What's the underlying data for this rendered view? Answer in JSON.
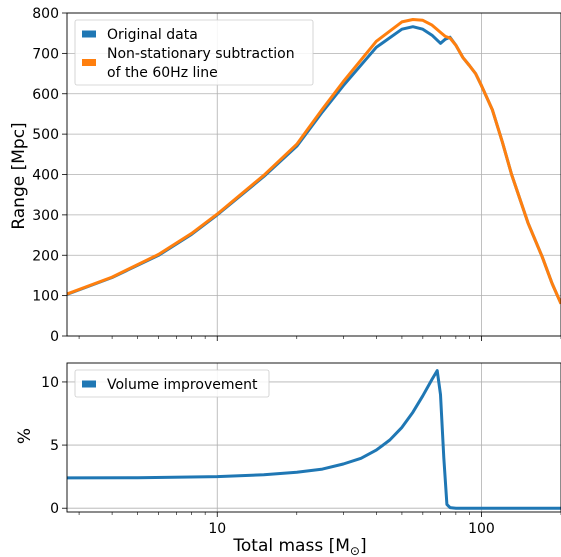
{
  "chart_data": [
    {
      "type": "line",
      "ylabel": "Range [Mpc]",
      "xscale": "log",
      "xlim": [
        2.7,
        200
      ],
      "ylim": [
        0,
        800
      ],
      "yticks": [
        0,
        100,
        200,
        300,
        400,
        500,
        600,
        700,
        800
      ],
      "grid": true,
      "legend_position": "top-left",
      "series": [
        {
          "name": "Original data",
          "color": "#1f77b4",
          "x": [
            2.7,
            4,
            6,
            8,
            10,
            15,
            20,
            25,
            30,
            40,
            50,
            55,
            60,
            65,
            70,
            73,
            76,
            80,
            85,
            90,
            95,
            100,
            110,
            120,
            130,
            150,
            170,
            185,
            200
          ],
          "y": [
            103,
            145,
            200,
            252,
            300,
            395,
            470,
            555,
            620,
            715,
            760,
            766,
            760,
            745,
            725,
            735,
            740,
            720,
            690,
            670,
            650,
            620,
            560,
            480,
            400,
            280,
            195,
            130,
            80
          ]
        },
        {
          "name": "Non-stationary subtraction of the 60Hz line",
          "color": "#ff7f0e",
          "x": [
            2.7,
            4,
            6,
            8,
            10,
            15,
            20,
            25,
            30,
            40,
            50,
            55,
            60,
            65,
            70,
            73,
            76,
            80,
            85,
            90,
            95,
            100,
            110,
            120,
            130,
            150,
            170,
            185,
            200
          ],
          "y": [
            104,
            146,
            202,
            254,
            302,
            398,
            475,
            562,
            630,
            730,
            778,
            784,
            782,
            770,
            752,
            742,
            738,
            720,
            690,
            670,
            650,
            620,
            560,
            480,
            400,
            280,
            195,
            130,
            80
          ]
        }
      ]
    },
    {
      "type": "line",
      "xlabel": "Total mass [M",
      "xlabel_symbol": "⊙",
      "xlabel_suffix": "]",
      "ylabel": "%",
      "xscale": "log",
      "xlim": [
        2.7,
        200
      ],
      "ylim": [
        -0.3,
        11.5
      ],
      "yticks": [
        0,
        5,
        10
      ],
      "xticks": [
        10,
        100
      ],
      "xtick_labels": [
        "10",
        "100"
      ],
      "grid": true,
      "legend_position": "top-left",
      "series": [
        {
          "name": "Volume improvement",
          "color": "#1f77b4",
          "x": [
            2.7,
            5,
            10,
            15,
            20,
            25,
            30,
            35,
            40,
            45,
            50,
            55,
            60,
            65,
            68,
            70,
            72,
            74,
            76,
            80,
            100,
            150,
            200
          ],
          "y": [
            2.4,
            2.42,
            2.5,
            2.65,
            2.85,
            3.1,
            3.5,
            3.95,
            4.6,
            5.4,
            6.4,
            7.6,
            8.9,
            10.2,
            10.9,
            9.0,
            4.0,
            0.3,
            0.05,
            0.0,
            0.0,
            0.0,
            0.0
          ]
        }
      ]
    }
  ]
}
